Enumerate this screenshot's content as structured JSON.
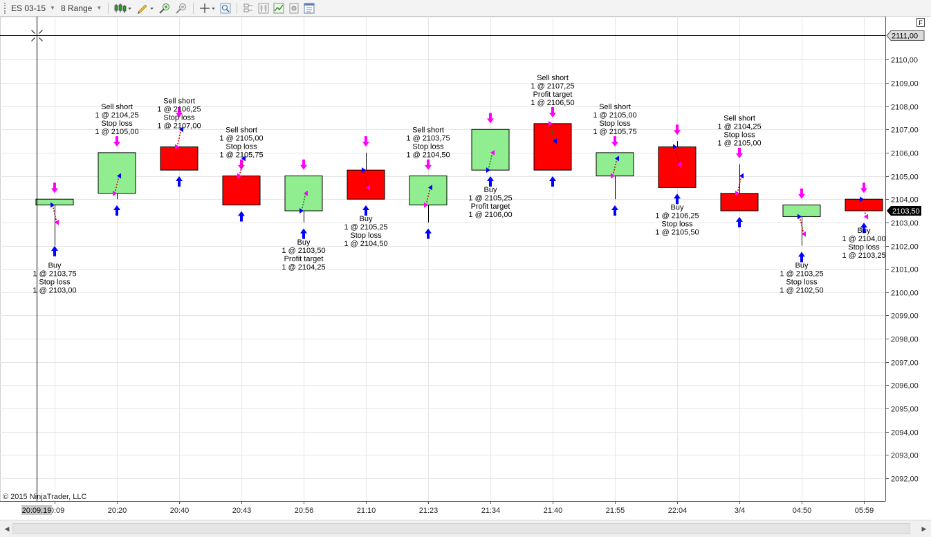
{
  "toolbar": {
    "instrument": "ES 03-15",
    "bar_type": "8 Range",
    "buttons": [
      "bar-style-icon",
      "drawing-tool-icon",
      "zoom-in-icon",
      "zoom-out-icon",
      "crosshair-icon",
      "find-icon",
      "data-box-icon",
      "chart-trader-icon",
      "indicators-icon",
      "strategies-icon",
      "properties-icon"
    ]
  },
  "chart": {
    "copyright": "© 2015 NinjaTrader, LLC",
    "f_button": "F",
    "crosshair_time_label": "20:09:19",
    "crosshair_price_label": "2111,00",
    "last_price_label": "2103,50",
    "colors": {
      "up_bar": "#90ee90",
      "down_bar": "#ff0000",
      "entry_arrow": "#0000ff",
      "exit_arrow": "#ff00ff",
      "last_price_bg": "#000000"
    }
  },
  "chart_data": {
    "type": "candlestick",
    "ylim": [
      2091.25,
      2111.75
    ],
    "grid": true,
    "x_tick_labels": [
      "20:09",
      "20:20",
      "20:40",
      "20:43",
      "20:56",
      "21:10",
      "21:23",
      "21:34",
      "21:40",
      "21:55",
      "22:04",
      "3/4",
      "04:50",
      "05:59"
    ],
    "y_tick_labels": [
      "2092,00",
      "2093,00",
      "2094,00",
      "2095,00",
      "2096,00",
      "2097,00",
      "2098,00",
      "2099,00",
      "2100,00",
      "2101,00",
      "2102,00",
      "2103,00",
      "2104,00",
      "2105,00",
      "2106,00",
      "2107,00",
      "2108,00",
      "2109,00",
      "2110,00"
    ],
    "bars": [
      {
        "label": "20:09",
        "open": 2103.75,
        "high": 2104.0,
        "low": 2102.0,
        "close": 2104.0
      },
      {
        "label": "20:20",
        "open": 2104.25,
        "high": 2106.0,
        "low": 2104.0,
        "close": 2106.0
      },
      {
        "label": "20:40",
        "open": 2106.25,
        "high": 2106.25,
        "low": 2105.25,
        "close": 2105.25
      },
      {
        "label": "20:43",
        "open": 2105.0,
        "high": 2105.0,
        "low": 2103.75,
        "close": 2103.75
      },
      {
        "label": "20:56",
        "open": 2103.5,
        "high": 2105.0,
        "low": 2103.0,
        "close": 2105.0
      },
      {
        "label": "21:10",
        "open": 2105.25,
        "high": 2106.0,
        "low": 2104.0,
        "close": 2104.0
      },
      {
        "label": "21:23",
        "open": 2103.75,
        "high": 2105.0,
        "low": 2103.0,
        "close": 2105.0
      },
      {
        "label": "21:34",
        "open": 2105.25,
        "high": 2107.0,
        "low": 2105.25,
        "close": 2107.0
      },
      {
        "label": "21:40",
        "open": 2107.25,
        "high": 2107.25,
        "low": 2105.25,
        "close": 2105.25
      },
      {
        "label": "21:55",
        "open": 2105.0,
        "high": 2106.0,
        "low": 2104.0,
        "close": 2106.0
      },
      {
        "label": "22:04",
        "open": 2106.25,
        "high": 2106.5,
        "low": 2104.5,
        "close": 2104.5
      },
      {
        "label": "3/4",
        "open": 2104.25,
        "high": 2105.5,
        "low": 2103.5,
        "close": 2103.5
      },
      {
        "label": "04:50",
        "open": 2103.25,
        "high": 2103.75,
        "low": 2102.0,
        "close": 2103.75
      },
      {
        "label": "05:59",
        "open": 2104.0,
        "high": 2104.0,
        "low": 2103.5,
        "close": 2103.5
      }
    ],
    "trades": [
      {
        "bar": 0,
        "direction": "long",
        "entry": 2103.75,
        "exit": 2103.0,
        "exit_bar": 0,
        "profit": false,
        "annotation": [
          "Buy",
          "1 @ 2103,75",
          "Stop loss",
          "1 @ 2103,00"
        ]
      },
      {
        "bar": 1,
        "direction": "short",
        "entry": 2104.25,
        "exit": 2105.0,
        "exit_bar": 1,
        "profit": false,
        "annotation": [
          "Sell short",
          "1 @ 2104,25",
          "Stop loss",
          "1 @ 2105,00"
        ]
      },
      {
        "bar": 2,
        "direction": "short",
        "entry": 2106.25,
        "exit": 2107.0,
        "exit_bar": 2,
        "profit": false,
        "annotation": [
          "Sell short",
          "1 @ 2106,25",
          "Stop loss",
          "1 @ 2107,00"
        ]
      },
      {
        "bar": 3,
        "direction": "short",
        "entry": 2105.0,
        "exit": 2105.75,
        "exit_bar": 3,
        "profit": false,
        "annotation": [
          "Sell short",
          "1 @ 2105,00",
          "Stop loss",
          "1 @ 2105,75"
        ]
      },
      {
        "bar": 4,
        "direction": "long",
        "entry": 2103.5,
        "exit": 2104.25,
        "exit_bar": 4,
        "profit": true,
        "annotation": [
          "Buy",
          "1 @ 2103,50",
          "Profit target",
          "1 @ 2104,25"
        ]
      },
      {
        "bar": 5,
        "direction": "long",
        "entry": 2105.25,
        "exit": 2104.5,
        "exit_bar": 5,
        "profit": false,
        "annotation": [
          "Buy",
          "1 @ 2105,25",
          "Stop loss",
          "1 @ 2104,50"
        ]
      },
      {
        "bar": 6,
        "direction": "short",
        "entry": 2103.75,
        "exit": 2104.5,
        "exit_bar": 6,
        "profit": false,
        "annotation": [
          "Sell short",
          "1 @ 2103,75",
          "Stop loss",
          "1 @ 2104,50"
        ]
      },
      {
        "bar": 7,
        "direction": "long",
        "entry": 2105.25,
        "exit": 2106.0,
        "exit_bar": 7,
        "profit": true,
        "annotation": [
          "Buy",
          "1 @ 2105,25",
          "Profit target",
          "1 @ 2106,00"
        ]
      },
      {
        "bar": 8,
        "direction": "short",
        "entry": 2107.25,
        "exit": 2106.5,
        "exit_bar": 8,
        "profit": true,
        "annotation": [
          "Sell short",
          "1 @ 2107,25",
          "Profit target",
          "1 @ 2106,50"
        ]
      },
      {
        "bar": 9,
        "direction": "short",
        "entry": 2105.0,
        "exit": 2105.75,
        "exit_bar": 9,
        "profit": false,
        "annotation": [
          "Sell short",
          "1 @ 2105,00",
          "Stop loss",
          "1 @ 2105,75"
        ]
      },
      {
        "bar": 10,
        "direction": "long",
        "entry": 2106.25,
        "exit": 2105.5,
        "exit_bar": 10,
        "profit": false,
        "annotation": [
          "Buy",
          "1 @ 2106,25",
          "Stop loss",
          "1 @ 2105,50"
        ]
      },
      {
        "bar": 11,
        "direction": "short",
        "entry": 2104.25,
        "exit": 2105.0,
        "exit_bar": 11,
        "profit": false,
        "annotation": [
          "Sell short",
          "1 @ 2104,25",
          "Stop loss",
          "1 @ 2105,00"
        ]
      },
      {
        "bar": 12,
        "direction": "long",
        "entry": 2103.25,
        "exit": 2102.5,
        "exit_bar": 12,
        "profit": false,
        "annotation": [
          "Buy",
          "1 @ 2103,25",
          "Stop loss",
          "1 @ 2102,50"
        ]
      },
      {
        "bar": 13,
        "direction": "long",
        "entry": 2104.0,
        "exit": 2103.25,
        "exit_bar": 13,
        "profit": false,
        "annotation": [
          "Buy",
          "1 @ 2104,00",
          "Stop loss",
          "1 @ 2103,25"
        ]
      }
    ],
    "signal_arrows": [
      {
        "bar": 0,
        "side": "up",
        "price": 2101.75
      },
      {
        "bar": 0,
        "side": "down",
        "price": 2104.5
      },
      {
        "bar": 1,
        "side": "up",
        "price": 2103.5
      },
      {
        "bar": 1,
        "side": "down",
        "price": 2106.5
      },
      {
        "bar": 2,
        "side": "up",
        "price": 2104.75
      },
      {
        "bar": 2,
        "side": "down",
        "price": 2107.75
      },
      {
        "bar": 3,
        "side": "up",
        "price": 2103.25
      },
      {
        "bar": 3,
        "side": "down",
        "price": 2105.5
      },
      {
        "bar": 4,
        "side": "up",
        "price": 2102.5
      },
      {
        "bar": 4,
        "side": "down",
        "price": 2105.5
      },
      {
        "bar": 5,
        "side": "up",
        "price": 2103.5
      },
      {
        "bar": 5,
        "side": "down",
        "price": 2106.5
      },
      {
        "bar": 6,
        "side": "up",
        "price": 2102.5
      },
      {
        "bar": 6,
        "side": "down",
        "price": 2105.5
      },
      {
        "bar": 7,
        "side": "up",
        "price": 2104.75
      },
      {
        "bar": 7,
        "side": "down",
        "price": 2107.5
      },
      {
        "bar": 8,
        "side": "up",
        "price": 2104.75
      },
      {
        "bar": 8,
        "side": "down",
        "price": 2107.75
      },
      {
        "bar": 9,
        "side": "up",
        "price": 2103.5
      },
      {
        "bar": 9,
        "side": "down",
        "price": 2106.5
      },
      {
        "bar": 10,
        "side": "up",
        "price": 2104.0
      },
      {
        "bar": 10,
        "side": "down",
        "price": 2107.0
      },
      {
        "bar": 11,
        "side": "up",
        "price": 2103.0
      },
      {
        "bar": 11,
        "side": "down",
        "price": 2106.0
      },
      {
        "bar": 12,
        "side": "up",
        "price": 2101.5
      },
      {
        "bar": 12,
        "side": "down",
        "price": 2104.25
      },
      {
        "bar": 13,
        "side": "up",
        "price": 2102.75
      },
      {
        "bar": 13,
        "side": "down",
        "price": 2104.5
      }
    ]
  }
}
